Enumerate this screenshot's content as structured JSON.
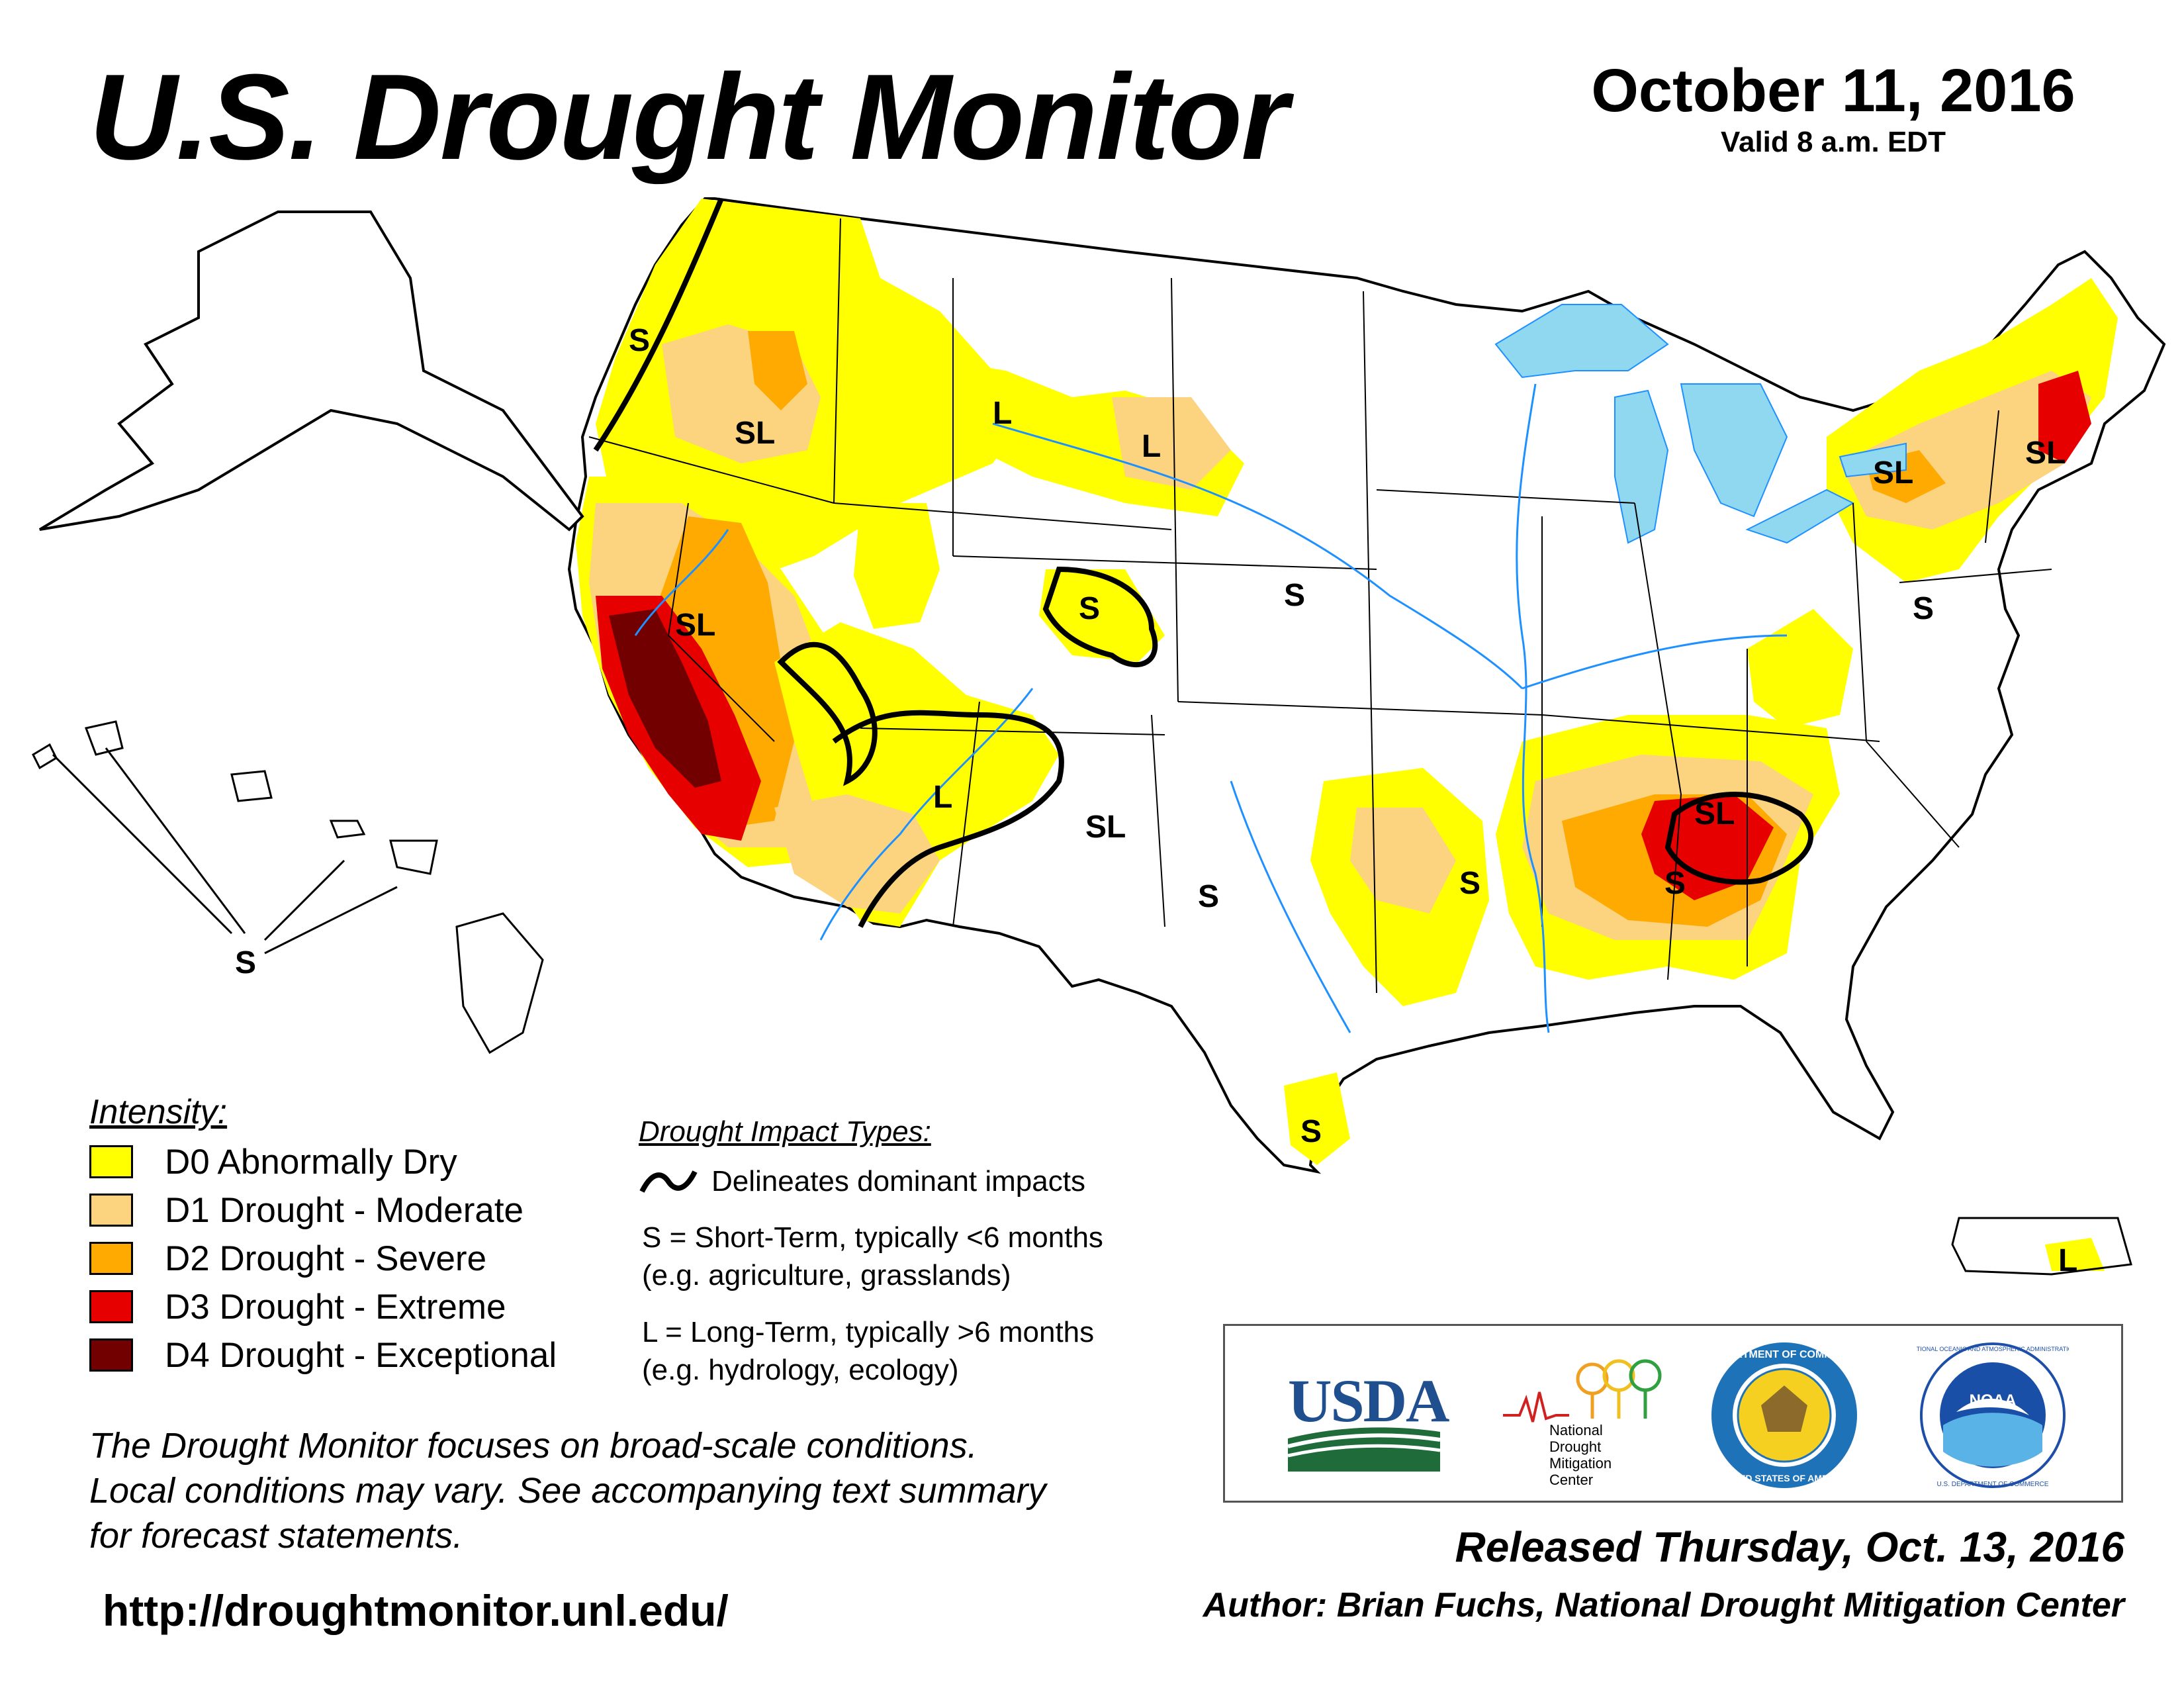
{
  "header": {
    "title": "U.S. Drought Monitor",
    "date": "October 11, 2016",
    "valid": "Valid 8 a.m. EDT"
  },
  "legend": {
    "heading": "Intensity:",
    "items": [
      {
        "label": "D0 Abnormally Dry",
        "color": "#ffff00"
      },
      {
        "label": "D1 Drought - Moderate",
        "color": "#fcd37f"
      },
      {
        "label": "D2 Drought - Severe",
        "color": "#ffaa00"
      },
      {
        "label": "D3 Drought - Extreme",
        "color": "#e60000"
      },
      {
        "label": "D4 Drought - Exceptional",
        "color": "#730000"
      }
    ]
  },
  "impacts": {
    "heading": "Drought Impact Types:",
    "delineates": "Delineates dominant impacts",
    "short_term": "S = Short-Term, typically <6 months",
    "short_term_eg": "(e.g. agriculture, grasslands)",
    "long_term": "L = Long-Term, typically >6 months",
    "long_term_eg": "(e.g. hydrology, ecology)"
  },
  "map_labels": {
    "S": "S",
    "L": "L",
    "SL": "SL"
  },
  "note": {
    "line1": "The Drought Monitor focuses on broad-scale conditions.",
    "line2": "Local conditions may vary. See accompanying text summary",
    "line3": "for forecast statements."
  },
  "footer": {
    "url": "http://droughtmonitor.unl.edu/",
    "released": "Released Thursday, Oct. 13, 2016",
    "author": "Author: Brian Fuchs, National Drought Mitigation Center"
  },
  "logos": {
    "usda": "USDA",
    "ndmc_line1": "National",
    "ndmc_line2": "Drought",
    "ndmc_line3": "Mitigation",
    "ndmc_line4": "Center",
    "commerce_top": "DEPARTMENT OF COMMERCE",
    "commerce_bottom": "UNITED STATES OF AMERICA",
    "noaa_center": "NOAA",
    "noaa_ring": "NATIONAL OCEANIC AND ATMOSPHERIC ADMINISTRATION",
    "noaa_bottom": "U.S. DEPARTMENT OF COMMERCE"
  },
  "colors": {
    "water": "#8fd8f0",
    "river": "#1e90ff",
    "border": "#000000"
  }
}
